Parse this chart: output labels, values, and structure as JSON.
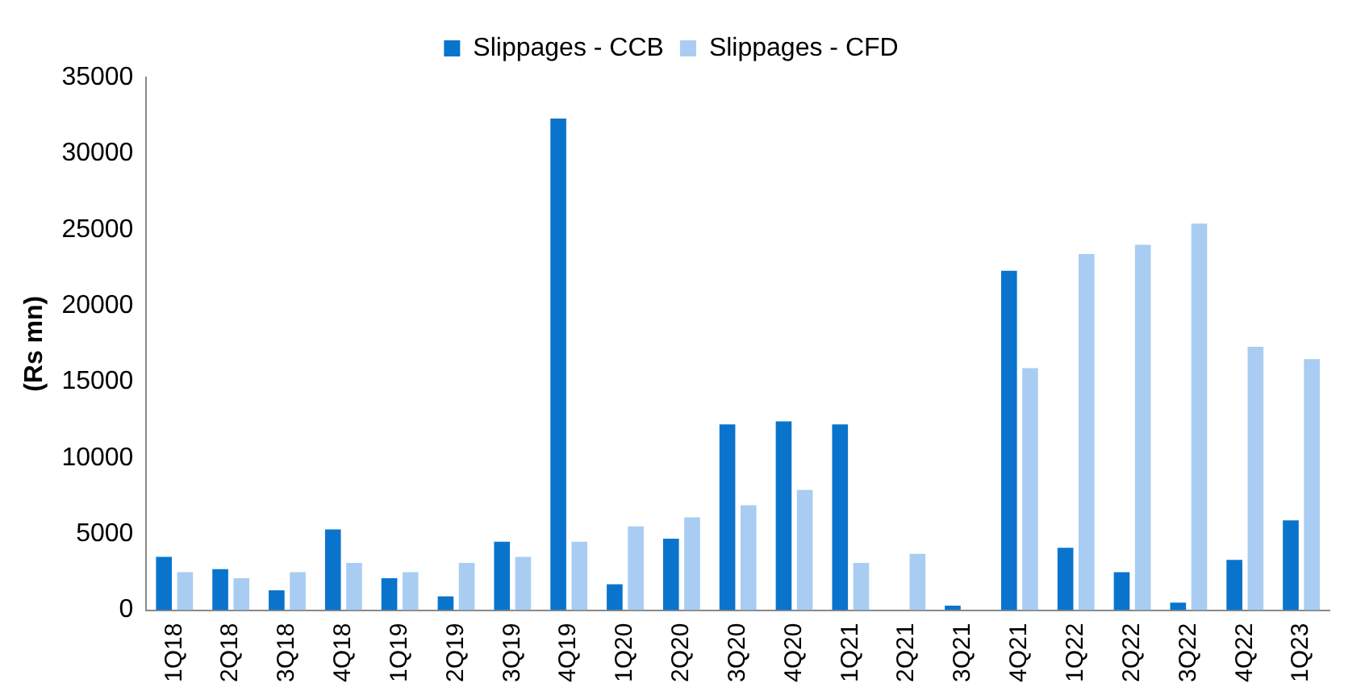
{
  "chart_data": {
    "type": "bar",
    "ylabel": "(Rs mn)",
    "categories": [
      "1Q18",
      "2Q18",
      "3Q18",
      "4Q18",
      "1Q19",
      "2Q19",
      "3Q19",
      "4Q19",
      "1Q20",
      "2Q20",
      "3Q20",
      "4Q20",
      "1Q21",
      "2Q21",
      "3Q21",
      "4Q21",
      "1Q22",
      "2Q22",
      "3Q22",
      "4Q22",
      "1Q23"
    ],
    "series": [
      {
        "name": "Slippages - CCB",
        "color": "#0a74cc",
        "values": [
          3500,
          2700,
          1300,
          5300,
          2100,
          900,
          4500,
          32300,
          1700,
          4700,
          12200,
          12400,
          12200,
          0,
          300,
          22300,
          4100,
          2500,
          500,
          3300,
          5900
        ]
      },
      {
        "name": "Slippages - CFD",
        "color": "#a9cdf2",
        "values": [
          2500,
          2100,
          2500,
          3100,
          2500,
          3100,
          3500,
          4500,
          5500,
          6100,
          6900,
          7900,
          3100,
          3700,
          0,
          15900,
          23400,
          24000,
          25400,
          17300,
          16500
        ]
      }
    ],
    "ylim": [
      0,
      35000
    ],
    "yticks": [
      0,
      5000,
      10000,
      15000,
      20000,
      25000,
      30000,
      35000
    ],
    "grid": false,
    "legend": "top"
  }
}
